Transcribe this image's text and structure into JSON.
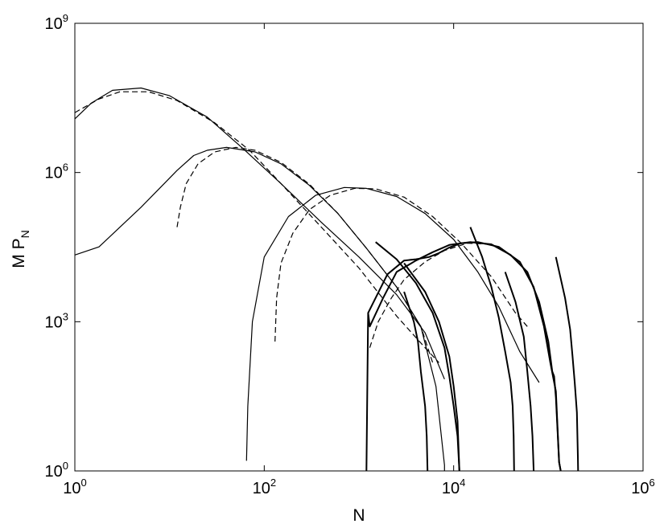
{
  "chart_data": {
    "type": "line",
    "title": "",
    "xlabel": "N",
    "ylabel": {
      "main": "M P",
      "subscript": "N"
    },
    "xscale": "log",
    "yscale": "log",
    "xlim": [
      1,
      1000000
    ],
    "ylim": [
      1,
      1000000000
    ],
    "grid": false,
    "legend": "none",
    "x_ticks": [
      {
        "base": "10",
        "exp": "0",
        "value": 1
      },
      {
        "base": "10",
        "exp": "2",
        "value": 100
      },
      {
        "base": "10",
        "exp": "4",
        "value": 10000
      },
      {
        "base": "10",
        "exp": "6",
        "value": 1000000
      }
    ],
    "y_ticks": [
      {
        "base": "10",
        "exp": "0",
        "value": 1
      },
      {
        "base": "10",
        "exp": "3",
        "value": 1000
      },
      {
        "base": "10",
        "exp": "6",
        "value": 1000000
      },
      {
        "base": "10",
        "exp": "9",
        "value": 1000000000
      }
    ],
    "series": [
      {
        "style": "solid",
        "color": "#000000",
        "points": [
          [
            1,
            22000
          ],
          [
            1.8,
            32000
          ],
          [
            3,
            80000
          ],
          [
            5,
            200000
          ],
          [
            8,
            500000
          ],
          [
            12,
            1100000
          ],
          [
            18,
            2200000
          ],
          [
            25,
            2800000
          ],
          [
            40,
            3200000
          ],
          [
            80,
            2600000
          ],
          [
            150,
            1500000
          ],
          [
            300,
            550000
          ],
          [
            600,
            150000
          ],
          [
            1200,
            30000
          ],
          [
            2500,
            5000
          ],
          [
            4500,
            800
          ],
          [
            6500,
            50
          ],
          [
            8000,
            1.3
          ],
          [
            8000,
            1
          ]
        ]
      },
      {
        "style": "dashed",
        "color": "#000000",
        "points": [
          [
            12,
            80000
          ],
          [
            13,
            200000
          ],
          [
            15,
            600000
          ],
          [
            20,
            1500000
          ],
          [
            30,
            2600000
          ],
          [
            50,
            3200000
          ],
          [
            80,
            2800000
          ],
          [
            150,
            1600000
          ],
          [
            300,
            580000
          ],
          [
            600,
            150000
          ],
          [
            1200,
            30000
          ],
          [
            2500,
            5000
          ],
          [
            4500,
            800
          ],
          [
            6000,
            150
          ]
        ]
      },
      {
        "style": "solid",
        "color": "#000000",
        "points": [
          [
            1,
            12000000
          ],
          [
            1.5,
            25000000
          ],
          [
            2.5,
            45000000
          ],
          [
            5,
            50000000
          ],
          [
            10,
            35000000
          ],
          [
            25,
            13000000
          ],
          [
            60,
            3000000
          ],
          [
            150,
            600000
          ],
          [
            400,
            100000
          ],
          [
            1000,
            20000
          ],
          [
            2500,
            3500
          ],
          [
            5000,
            600
          ],
          [
            8000,
            70
          ]
        ]
      },
      {
        "style": "dashed",
        "color": "#000000",
        "points": [
          [
            1,
            16000000
          ],
          [
            1.8,
            30000000
          ],
          [
            3,
            42000000
          ],
          [
            6,
            42000000
          ],
          [
            12,
            28000000
          ],
          [
            30,
            10000000
          ],
          [
            70,
            2800000
          ],
          [
            150,
            600000
          ],
          [
            400,
            80000
          ],
          [
            1000,
            12000
          ],
          [
            2500,
            1300
          ],
          [
            5000,
            300
          ],
          [
            7000,
            150
          ]
        ]
      },
      {
        "style": "solid",
        "color": "#000000",
        "points": [
          [
            65,
            1.6
          ],
          [
            67,
            20
          ],
          [
            75,
            1000
          ],
          [
            100,
            20000
          ],
          [
            180,
            130000
          ],
          [
            350,
            350000
          ],
          [
            700,
            500000
          ],
          [
            1200,
            480000
          ],
          [
            2500,
            330000
          ],
          [
            5000,
            150000
          ],
          [
            10000,
            45000
          ],
          [
            18000,
            10000
          ],
          [
            30000,
            2000
          ],
          [
            50000,
            250
          ],
          [
            80000,
            60
          ]
        ]
      },
      {
        "style": "dashed",
        "color": "#000000",
        "points": [
          [
            130,
            400
          ],
          [
            135,
            3000
          ],
          [
            150,
            15000
          ],
          [
            200,
            60000
          ],
          [
            300,
            180000
          ],
          [
            500,
            350000
          ],
          [
            900,
            480000
          ],
          [
            1500,
            470000
          ],
          [
            3000,
            320000
          ],
          [
            6000,
            130000
          ],
          [
            12000,
            38000
          ],
          [
            25000,
            8000
          ],
          [
            45000,
            1500
          ],
          [
            60000,
            800
          ]
        ]
      },
      {
        "style": "solid-thick",
        "color": "#000000",
        "points": [
          [
            1200,
            1
          ],
          [
            1250,
            1500
          ],
          [
            1300,
            800
          ],
          [
            1800,
            3000
          ],
          [
            2500,
            10000
          ],
          [
            4000,
            17000
          ],
          [
            6000,
            25000
          ],
          [
            9000,
            35000
          ],
          [
            15000,
            40000
          ],
          [
            25000,
            36000
          ],
          [
            40000,
            22000
          ],
          [
            60000,
            10000
          ],
          [
            80000,
            2500
          ],
          [
            100000,
            400
          ],
          [
            110000,
            100
          ],
          [
            115000,
            80
          ],
          [
            120000,
            30
          ],
          [
            130000,
            1.5
          ],
          [
            135000,
            1
          ]
        ]
      },
      {
        "style": "solid-thick",
        "color": "#000000",
        "points": [
          [
            1250,
            1500
          ],
          [
            2000,
            9000
          ],
          [
            3000,
            17000
          ],
          [
            4000,
            18000
          ],
          [
            5500,
            20000
          ],
          [
            7000,
            24000
          ],
          [
            9000,
            31000
          ],
          [
            12000,
            38000
          ],
          [
            18000,
            40000
          ],
          [
            30000,
            32000
          ],
          [
            50000,
            16000
          ],
          [
            70000,
            5000
          ],
          [
            90000,
            800
          ],
          [
            105000,
            150
          ],
          [
            120000,
            40
          ],
          [
            130000,
            1.5
          ],
          [
            135000,
            1
          ]
        ]
      },
      {
        "style": "dashed",
        "color": "#000000",
        "points": [
          [
            1300,
            300
          ],
          [
            1600,
            1000
          ],
          [
            2200,
            3000
          ],
          [
            3000,
            7000
          ],
          [
            5000,
            16000
          ],
          [
            8000,
            27000
          ],
          [
            14000,
            38000
          ],
          [
            25000,
            36000
          ]
        ]
      },
      {
        "style": "solid-thick",
        "color": "#000000",
        "points": [
          [
            1500,
            40000
          ],
          [
            2500,
            18000
          ],
          [
            4000,
            6000
          ],
          [
            6000,
            1500
          ],
          [
            8000,
            300
          ],
          [
            9000,
            80
          ],
          [
            10000,
            20
          ],
          [
            11000,
            5
          ],
          [
            11500,
            1
          ]
        ]
      },
      {
        "style": "solid-thick",
        "color": "#000000",
        "points": [
          [
            15000,
            80000
          ],
          [
            20000,
            20000
          ],
          [
            25000,
            5000
          ],
          [
            30000,
            1200
          ],
          [
            35000,
            250
          ],
          [
            40000,
            60
          ],
          [
            42000,
            20
          ],
          [
            43000,
            5
          ],
          [
            43500,
            1
          ]
        ]
      },
      {
        "style": "solid-thick",
        "color": "#000000",
        "points": [
          [
            3000,
            15000
          ],
          [
            5000,
            4000
          ],
          [
            7000,
            1000
          ],
          [
            9000,
            200
          ],
          [
            10000,
            50
          ],
          [
            11000,
            10
          ],
          [
            11500,
            1
          ]
        ]
      },
      {
        "style": "solid-thick",
        "color": "#000000",
        "points": [
          [
            3000,
            4000
          ],
          [
            3800,
            1000
          ],
          [
            4200,
            400
          ],
          [
            4500,
            100
          ],
          [
            5000,
            20
          ],
          [
            5200,
            5
          ],
          [
            5300,
            1
          ]
        ]
      },
      {
        "style": "solid-thick",
        "color": "#000000",
        "points": [
          [
            35000,
            10000
          ],
          [
            45000,
            2500
          ],
          [
            55000,
            500
          ],
          [
            60000,
            100
          ],
          [
            65000,
            20
          ],
          [
            68000,
            5
          ],
          [
            70000,
            1
          ]
        ]
      },
      {
        "style": "solid-thick",
        "color": "#000000",
        "points": [
          [
            120000,
            20000
          ],
          [
            150000,
            3000
          ],
          [
            170000,
            700
          ],
          [
            180000,
            200
          ],
          [
            190000,
            60
          ],
          [
            200000,
            15
          ],
          [
            205000,
            2
          ],
          [
            206000,
            1
          ]
        ]
      }
    ]
  }
}
